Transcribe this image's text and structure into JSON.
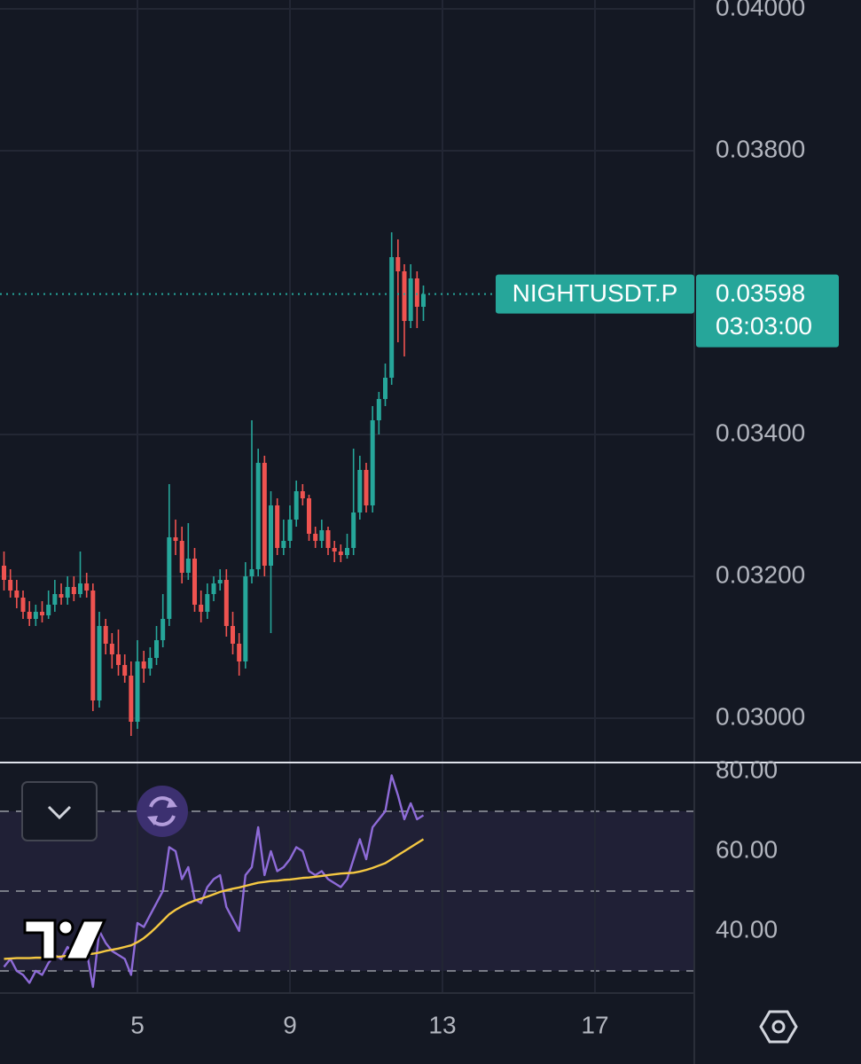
{
  "chart_data": [
    {
      "type": "candlestick",
      "symbol": "NIGHTUSDT.P",
      "last_price": 0.03598,
      "countdown": "03:03:00",
      "up_color": "#26a69a",
      "down_color": "#ef5350",
      "x": [
        1.5,
        1.667,
        1.833,
        2,
        2.167,
        2.333,
        2.5,
        2.667,
        2.833,
        3,
        3.167,
        3.333,
        3.5,
        3.667,
        3.833,
        4,
        4.167,
        4.333,
        4.5,
        4.667,
        4.833,
        5,
        5.167,
        5.333,
        5.5,
        5.667,
        5.833,
        6,
        6.167,
        6.333,
        6.5,
        6.667,
        6.833,
        7,
        7.167,
        7.333,
        7.5,
        7.667,
        7.833,
        8,
        8.167,
        8.333,
        8.5,
        8.667,
        8.833,
        9,
        9.167,
        9.333,
        9.5,
        9.667,
        9.833,
        10,
        10.167,
        10.333,
        10.5,
        10.667,
        10.833,
        11,
        11.167,
        11.333,
        11.5,
        11.667,
        11.833,
        12,
        12.167,
        12.333,
        12.5
      ],
      "open": [
        0.03215,
        0.03195,
        0.0318,
        0.0317,
        0.0315,
        0.0314,
        0.0315,
        0.03145,
        0.0316,
        0.03175,
        0.0317,
        0.03185,
        0.03175,
        0.0319,
        0.0318,
        0.03025,
        0.0313,
        0.03105,
        0.0309,
        0.03075,
        0.0306,
        0.02995,
        0.0308,
        0.0307,
        0.03085,
        0.0311,
        0.0314,
        0.03255,
        0.0325,
        0.03205,
        0.03225,
        0.0316,
        0.0315,
        0.03175,
        0.0319,
        0.03195,
        0.0313,
        0.03105,
        0.0308,
        0.032,
        0.0321,
        0.0336,
        0.03215,
        0.033,
        0.0324,
        0.0325,
        0.0328,
        0.0332,
        0.0331,
        0.0326,
        0.0325,
        0.03265,
        0.0324,
        0.03235,
        0.0323,
        0.0324,
        0.0329,
        0.0335,
        0.033,
        0.0342,
        0.0345,
        0.0348,
        0.0365,
        0.0363,
        0.0356,
        0.0362,
        0.0358
      ],
      "high": [
        0.03235,
        0.0321,
        0.03195,
        0.0318,
        0.03165,
        0.0316,
        0.03165,
        0.0318,
        0.03195,
        0.0319,
        0.032,
        0.032,
        0.03235,
        0.03205,
        0.0319,
        0.0315,
        0.0314,
        0.0312,
        0.03125,
        0.0309,
        0.0308,
        0.0311,
        0.03095,
        0.031,
        0.0313,
        0.03175,
        0.0333,
        0.0328,
        0.0327,
        0.03275,
        0.0324,
        0.0318,
        0.0319,
        0.032,
        0.0321,
        0.0321,
        0.0315,
        0.0312,
        0.0322,
        0.0342,
        0.0338,
        0.0337,
        0.0332,
        0.0331,
        0.0328,
        0.033,
        0.03335,
        0.0333,
        0.03315,
        0.0327,
        0.0328,
        0.0327,
        0.0325,
        0.03245,
        0.0326,
        0.0338,
        0.0337,
        0.0336,
        0.0344,
        0.0346,
        0.035,
        0.03685,
        0.03675,
        0.0364,
        0.0364,
        0.0363,
        0.0361
      ],
      "low": [
        0.0318,
        0.0317,
        0.03155,
        0.0314,
        0.0313,
        0.0313,
        0.03135,
        0.0314,
        0.0315,
        0.0316,
        0.0316,
        0.03165,
        0.0317,
        0.0317,
        0.0301,
        0.03015,
        0.0309,
        0.0307,
        0.0306,
        0.0305,
        0.02975,
        0.02985,
        0.0305,
        0.0306,
        0.03075,
        0.031,
        0.0313,
        0.0323,
        0.0319,
        0.03195,
        0.0315,
        0.03135,
        0.0314,
        0.03165,
        0.0318,
        0.03115,
        0.0309,
        0.0306,
        0.0307,
        0.0319,
        0.032,
        0.032,
        0.0312,
        0.0323,
        0.0323,
        0.0324,
        0.0327,
        0.033,
        0.0325,
        0.0324,
        0.0324,
        0.0323,
        0.0322,
        0.0322,
        0.03225,
        0.0323,
        0.0328,
        0.0329,
        0.0329,
        0.034,
        0.0344,
        0.0347,
        0.0353,
        0.0351,
        0.0355,
        0.0355,
        0.0356
      ],
      "close": [
        0.03195,
        0.0318,
        0.0317,
        0.0315,
        0.0314,
        0.0315,
        0.03145,
        0.0316,
        0.03175,
        0.0317,
        0.03185,
        0.03175,
        0.0319,
        0.0318,
        0.03025,
        0.0313,
        0.03105,
        0.0309,
        0.03075,
        0.0306,
        0.02995,
        0.0308,
        0.0307,
        0.03085,
        0.0311,
        0.0314,
        0.03255,
        0.0325,
        0.03205,
        0.03225,
        0.0316,
        0.0315,
        0.03175,
        0.0319,
        0.03195,
        0.0313,
        0.03105,
        0.0308,
        0.032,
        0.0321,
        0.0336,
        0.03215,
        0.033,
        0.0324,
        0.0325,
        0.0328,
        0.0332,
        0.0331,
        0.0326,
        0.0325,
        0.03265,
        0.0324,
        0.03235,
        0.0323,
        0.0324,
        0.0329,
        0.0335,
        0.033,
        0.0342,
        0.0345,
        0.0348,
        0.0365,
        0.0363,
        0.0356,
        0.0362,
        0.0358,
        0.03598
      ],
      "xlim": [
        1.395,
        19.605
      ],
      "ylim": [
        0.029375,
        0.040125
      ],
      "yticks": [
        {
          "value": 0.03,
          "label": "0.03000"
        },
        {
          "value": 0.032,
          "label": "0.03200"
        },
        {
          "value": 0.034,
          "label": "0.03400"
        },
        {
          "value": 0.038,
          "label": "0.03800"
        },
        {
          "value": 0.04,
          "label": "0.04000"
        }
      ],
      "grid": true
    },
    {
      "type": "line",
      "x": [
        1.5,
        1.667,
        1.833,
        2,
        2.167,
        2.333,
        2.5,
        2.667,
        2.833,
        3,
        3.167,
        3.333,
        3.5,
        3.667,
        3.833,
        4,
        4.167,
        4.333,
        4.5,
        4.667,
        4.833,
        5,
        5.167,
        5.333,
        5.5,
        5.667,
        5.833,
        6,
        6.167,
        6.333,
        6.5,
        6.667,
        6.833,
        7,
        7.167,
        7.333,
        7.5,
        7.667,
        7.833,
        8,
        8.167,
        8.333,
        8.5,
        8.667,
        8.833,
        9,
        9.167,
        9.333,
        9.5,
        9.667,
        9.833,
        10,
        10.167,
        10.333,
        10.5,
        10.667,
        10.833,
        11,
        11.167,
        11.333,
        11.5,
        11.667,
        11.833,
        12,
        12.167,
        12.333,
        12.5
      ],
      "series": [
        {
          "color": "#8e6bd8",
          "values": [
            31,
            33,
            30,
            29,
            27,
            30,
            29,
            32,
            34,
            33,
            36,
            34,
            37,
            35,
            26,
            40,
            37,
            35,
            34,
            33,
            29,
            42,
            41,
            44,
            47,
            50,
            61,
            60,
            53,
            56,
            48,
            47,
            51,
            53,
            54,
            46,
            43,
            40,
            54,
            56,
            66,
            54,
            60,
            55,
            56,
            58,
            61,
            60,
            55,
            54,
            55,
            53,
            52,
            51,
            53,
            58,
            63,
            58,
            66,
            68,
            70,
            79,
            74,
            68,
            72,
            68,
            69
          ]
        },
        {
          "color": "#f5c842",
          "values": [
            33.0,
            33.1,
            33.2,
            33.2,
            33.2,
            33.3,
            33.3,
            33.4,
            33.5,
            33.6,
            33.8,
            33.9,
            34.0,
            34.2,
            34.3,
            34.6,
            35.0,
            35.3,
            35.6,
            36.0,
            36.4,
            37.2,
            38.2,
            39.5,
            41.0,
            42.6,
            44.2,
            45.3,
            46.2,
            47.0,
            47.6,
            48.1,
            48.6,
            49.2,
            49.8,
            50.2,
            50.6,
            50.9,
            51.3,
            51.7,
            52.1,
            52.3,
            52.5,
            52.6,
            52.8,
            52.9,
            53.1,
            53.3,
            53.4,
            53.6,
            53.8,
            54.0,
            54.2,
            54.4,
            54.5,
            54.6,
            54.9,
            55.3,
            55.8,
            56.4,
            57.0,
            58.0,
            59.0,
            60.0,
            61.0,
            62.0,
            63.0
          ]
        }
      ],
      "levels": [
        30,
        50,
        70
      ],
      "xlim": [
        1.395,
        19.605
      ],
      "xticks": [
        5,
        9,
        13,
        17
      ],
      "ylim": [
        24.44,
        82.22
      ],
      "yticks": [
        {
          "value": 40,
          "label": "40.00"
        },
        {
          "value": 60,
          "label": "60.00"
        },
        {
          "value": 80,
          "label": "80.00"
        }
      ]
    }
  ]
}
